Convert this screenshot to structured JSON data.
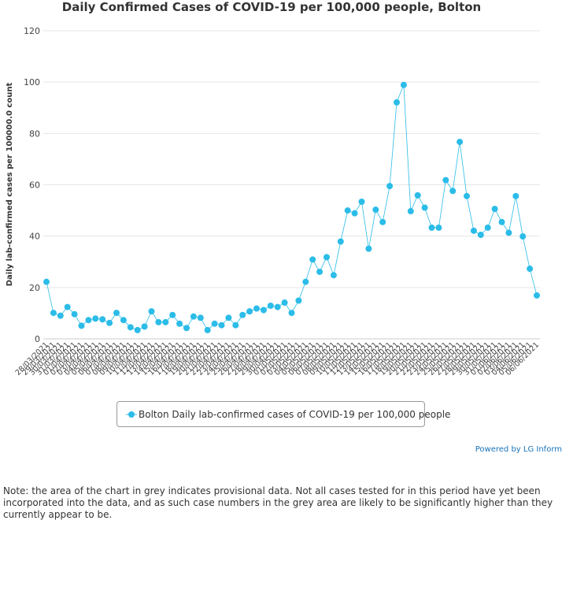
{
  "chart_data": {
    "type": "line",
    "title": "Daily Confirmed Cases of COVID-19 per 100,000 people, Bolton",
    "ylabel": "Daily lab-confirmed cases per 100000.0 count",
    "xlabel": "",
    "ylim": [
      0,
      120
    ],
    "yticks": [
      0,
      20,
      40,
      60,
      80,
      100,
      120
    ],
    "grid": true,
    "legend_position": "bottom",
    "series_color": "#2bbce8",
    "categories": [
      "28/03/2021",
      "29/03/2021",
      "30/03/2021",
      "31/03/2021",
      "01/04/2021",
      "02/04/2021",
      "03/04/2021",
      "04/04/2021",
      "05/04/2021",
      "06/04/2021",
      "07/04/2021",
      "08/04/2021",
      "09/04/2021",
      "10/04/2021",
      "11/04/2021",
      "12/04/2021",
      "13/04/2021",
      "14/04/2021",
      "15/04/2021",
      "16/04/2021",
      "17/04/2021",
      "18/04/2021",
      "19/04/2021",
      "20/04/2021",
      "21/04/2021",
      "22/04/2021",
      "23/04/2021",
      "24/04/2021",
      "25/04/2021",
      "26/04/2021",
      "27/04/2021",
      "28/04/2021",
      "29/04/2021",
      "30/04/2021",
      "01/05/2021",
      "02/05/2021",
      "03/05/2021",
      "04/05/2021",
      "05/05/2021",
      "06/05/2021",
      "07/05/2021",
      "08/05/2021",
      "09/05/2021",
      "10/05/2021",
      "11/05/2021",
      "12/05/2021",
      "13/05/2021",
      "14/05/2021",
      "15/05/2021",
      "16/05/2021",
      "17/05/2021",
      "18/05/2021",
      "19/05/2021",
      "20/05/2021",
      "21/05/2021",
      "22/05/2021",
      "23/05/2021",
      "24/05/2021",
      "25/05/2021",
      "26/05/2021",
      "27/05/2021",
      "28/05/2021",
      "29/05/2021",
      "30/05/2021",
      "31/05/2021",
      "01/06/2021",
      "02/06/2021",
      "03/06/2021",
      "04/06/2021",
      "05/06/2021",
      "06/06/2021"
    ],
    "series": [
      {
        "name": "Bolton Daily lab-confirmed cases of COVID-19 per 100,000 people",
        "values": [
          22.2,
          10.1,
          9.0,
          12.4,
          9.6,
          5.1,
          7.3,
          7.9,
          7.6,
          6.2,
          10.1,
          7.3,
          4.5,
          3.4,
          4.8,
          10.7,
          6.5,
          6.5,
          9.3,
          5.9,
          4.2,
          8.7,
          8.2,
          3.4,
          5.9,
          5.3,
          8.2,
          5.3,
          9.3,
          10.7,
          11.8,
          11.2,
          12.9,
          12.4,
          14.1,
          10.1,
          14.9,
          22.2,
          30.9,
          26.1,
          31.8,
          24.8,
          37.9,
          50.0,
          48.9,
          53.4,
          35.1,
          50.3,
          45.5,
          59.5,
          92.1,
          98.9,
          49.7,
          55.9,
          51.1,
          43.3,
          43.3,
          61.8,
          57.6,
          76.7,
          55.6,
          42.1,
          40.5,
          43.3,
          50.6,
          45.5,
          41.3,
          55.6,
          39.9,
          27.3,
          16.9
        ]
      }
    ]
  },
  "legend": {
    "label": "Bolton Daily lab-confirmed cases of COVID-19 per 100,000 people"
  },
  "footer": {
    "powered_by": "Powered by LG Inform",
    "note": "Note: the area of the chart in grey indicates provisional data. Not all cases tested for in this period have yet been incorporated into the data, and as such case numbers in the grey area are likely to be significantly higher than they currently appear to be."
  }
}
